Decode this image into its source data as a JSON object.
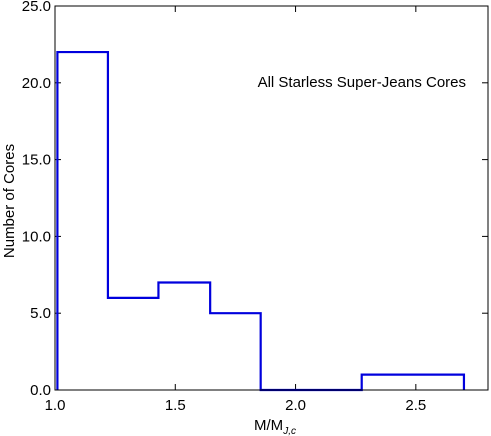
{
  "chart_data": {
    "type": "histogram",
    "title": "",
    "annotation": "All Starless Super-Jeans Cores",
    "xlabel": {
      "main": "M/M",
      "sub": "J,c"
    },
    "ylabel": "Number of Cores",
    "xlim": [
      1.0,
      2.8
    ],
    "ylim": [
      0.0,
      25.0
    ],
    "x_ticks": [
      {
        "value": 1.0,
        "label": "1.0"
      },
      {
        "value": 1.5,
        "label": "1.5"
      },
      {
        "value": 2.0,
        "label": "2.0"
      },
      {
        "value": 2.5,
        "label": "2.5"
      }
    ],
    "y_ticks": [
      {
        "value": 0.0,
        "label": "0.0"
      },
      {
        "value": 5.0,
        "label": "5.0"
      },
      {
        "value": 10.0,
        "label": "10.0"
      },
      {
        "value": 15.0,
        "label": "15.0"
      },
      {
        "value": 20.0,
        "label": "20.0"
      },
      {
        "value": 25.0,
        "label": "25.0"
      }
    ],
    "bin_edges": [
      1.01,
      1.22,
      1.43,
      1.645,
      1.855,
      2.065,
      2.275,
      2.7
    ],
    "counts": [
      22,
      6,
      7,
      5,
      0,
      0,
      1
    ],
    "grid": false,
    "line_color": "#0000dd"
  }
}
